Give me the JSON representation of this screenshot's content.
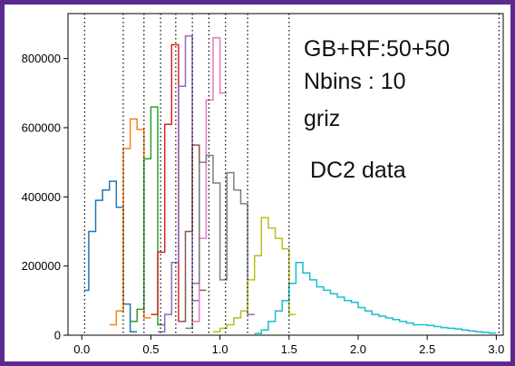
{
  "chart_data": {
    "type": "step-histogram",
    "title": "",
    "xlabel": "",
    "ylabel": "",
    "xlim": [
      -0.1,
      3.05
    ],
    "ylim": [
      0,
      930000
    ],
    "x_ticks": [
      0.0,
      0.5,
      1.0,
      1.5,
      2.0,
      2.5,
      3.0
    ],
    "x_tick_labels": [
      "0.0",
      "0.5",
      "1.0",
      "1.5",
      "2.0",
      "2.5",
      "3.0"
    ],
    "y_ticks": [
      0,
      200000,
      400000,
      600000,
      800000
    ],
    "y_tick_labels": [
      "0",
      "200000",
      "400000",
      "600000",
      "800000"
    ],
    "bin_edges_vlines": [
      0.02,
      0.3,
      0.45,
      0.57,
      0.68,
      0.8,
      0.92,
      1.04,
      1.2,
      1.5,
      3.02
    ],
    "annotations": [
      "GB+RF:50+50",
      "Nbins : 10",
      "griz",
      "DC2 data"
    ],
    "series": [
      {
        "color": "#1f77b4",
        "x": [
          0.02,
          0.05,
          0.1,
          0.15,
          0.2,
          0.25,
          0.3,
          0.35,
          0.4
        ],
        "y": [
          130000,
          300000,
          390000,
          420000,
          445000,
          370000,
          90000,
          10000,
          0
        ]
      },
      {
        "color": "#ff7f0e",
        "x": [
          0.2,
          0.25,
          0.3,
          0.35,
          0.4,
          0.45,
          0.5
        ],
        "y": [
          30000,
          70000,
          540000,
          625000,
          595000,
          50000,
          0
        ]
      },
      {
        "color": "#2ca02c",
        "x": [
          0.35,
          0.4,
          0.45,
          0.5,
          0.55,
          0.6
        ],
        "y": [
          40000,
          75000,
          510000,
          660000,
          30000,
          0
        ]
      },
      {
        "color": "#d62728",
        "x": [
          0.5,
          0.55,
          0.6,
          0.65,
          0.7,
          0.75
        ],
        "y": [
          60000,
          240000,
          610000,
          840000,
          40000,
          0
        ]
      },
      {
        "color": "#9467bd",
        "x": [
          0.55,
          0.6,
          0.65,
          0.7,
          0.75,
          0.8,
          0.85
        ],
        "y": [
          10000,
          60000,
          210000,
          720000,
          865000,
          100000,
          0
        ]
      },
      {
        "color": "#8c564b",
        "x": [
          0.7,
          0.75,
          0.8,
          0.85,
          0.9
        ],
        "y": [
          40000,
          300000,
          550000,
          130000,
          0
        ]
      },
      {
        "color": "#e377c2",
        "x": [
          0.8,
          0.85,
          0.9,
          0.95,
          1.0,
          1.05
        ],
        "y": [
          40000,
          280000,
          680000,
          860000,
          700000,
          0
        ]
      },
      {
        "color": "#7f7f7f",
        "x": [
          0.75,
          0.8,
          0.85,
          0.9,
          0.95,
          1.0,
          1.05,
          1.1,
          1.15,
          1.2,
          1.25
        ],
        "y": [
          20000,
          150000,
          500000,
          520000,
          440000,
          160000,
          470000,
          420000,
          380000,
          60000,
          0
        ]
      },
      {
        "color": "#bcbd22",
        "x": [
          0.95,
          1.0,
          1.05,
          1.1,
          1.15,
          1.2,
          1.25,
          1.3,
          1.35,
          1.4,
          1.45,
          1.5,
          1.55
        ],
        "y": [
          10000,
          20000,
          30000,
          50000,
          70000,
          160000,
          230000,
          340000,
          310000,
          280000,
          250000,
          60000,
          0
        ]
      },
      {
        "color": "#17becf",
        "x": [
          1.25,
          1.3,
          1.35,
          1.4,
          1.45,
          1.5,
          1.55,
          1.6,
          1.65,
          1.7,
          1.75,
          1.8,
          1.85,
          1.9,
          1.95,
          2.0,
          2.05,
          2.1,
          2.15,
          2.2,
          2.25,
          2.3,
          2.35,
          2.4,
          2.45,
          2.5,
          2.55,
          2.6,
          2.65,
          2.7,
          2.75,
          2.8,
          2.85,
          2.9,
          2.95,
          3.0
        ],
        "y": [
          5000,
          15000,
          40000,
          70000,
          100000,
          150000,
          210000,
          180000,
          160000,
          140000,
          130000,
          120000,
          110000,
          100000,
          95000,
          80000,
          70000,
          60000,
          55000,
          50000,
          45000,
          40000,
          35000,
          30000,
          30000,
          28000,
          25000,
          22000,
          20000,
          18000,
          15000,
          12000,
          10000,
          8000,
          6000,
          0
        ]
      }
    ]
  }
}
